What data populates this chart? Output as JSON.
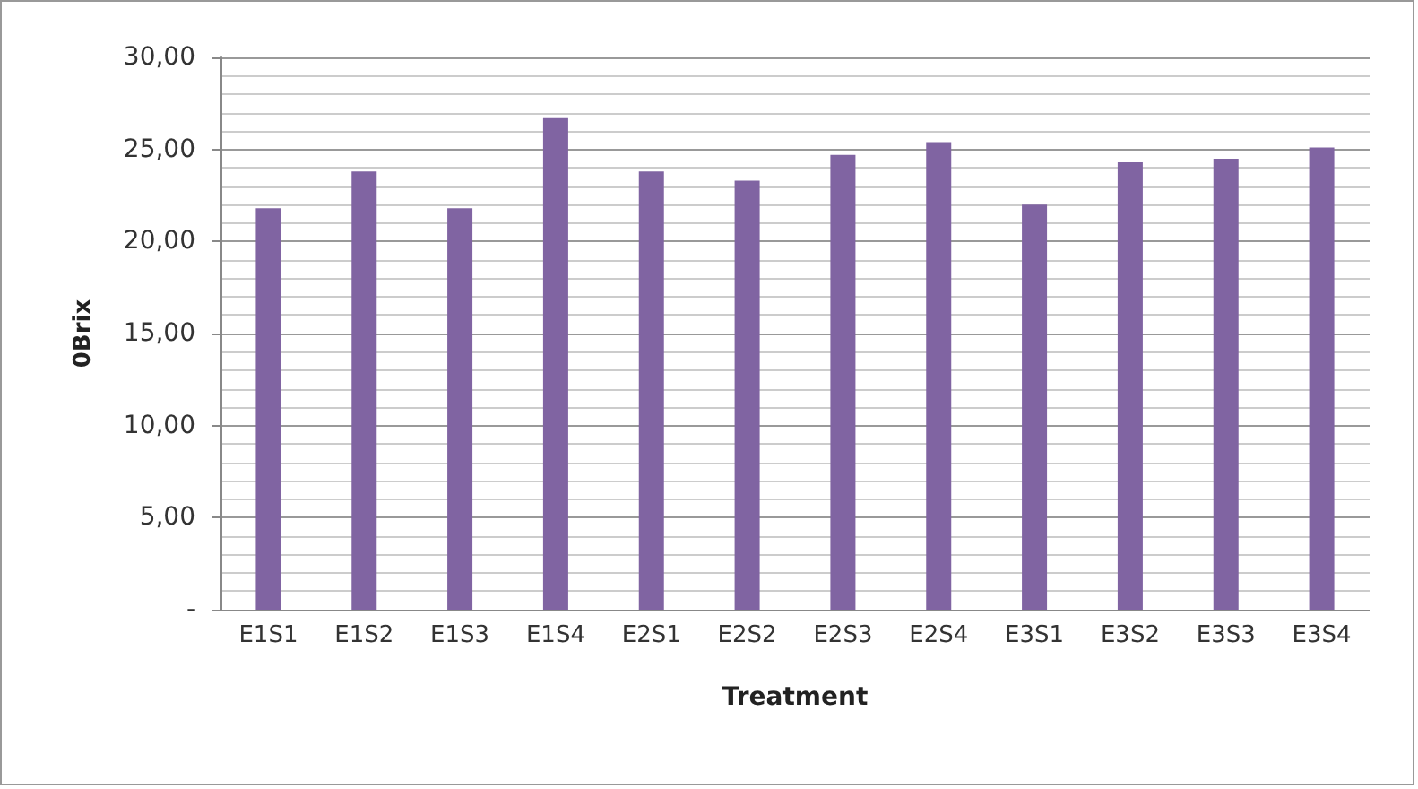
{
  "chart_data": {
    "type": "bar",
    "xlabel": "Treatment",
    "ylabel": "0Brix",
    "categories": [
      "E1S1",
      "E1S2",
      "E1S3",
      "E1S4",
      "E2S1",
      "E2S2",
      "E2S3",
      "E2S4",
      "E3S1",
      "E3S2",
      "E3S3",
      "E3S4"
    ],
    "series": [
      {
        "color": "#8064a2",
        "values": [
          21.8,
          23.8,
          21.8,
          26.7,
          23.8,
          23.3,
          24.7,
          25.4,
          22.0,
          24.3,
          24.5,
          25.1
        ]
      }
    ],
    "ylim": [
      0,
      30
    ],
    "yticks": [
      {
        "value": 0,
        "label": "-"
      },
      {
        "value": 5,
        "label": "5,00"
      },
      {
        "value": 10,
        "label": "10,00"
      },
      {
        "value": 15,
        "label": "15,00"
      },
      {
        "value": 20,
        "label": "20,00"
      },
      {
        "value": 25,
        "label": "25,00"
      },
      {
        "value": 30,
        "label": "30,00"
      }
    ],
    "grid": true
  }
}
